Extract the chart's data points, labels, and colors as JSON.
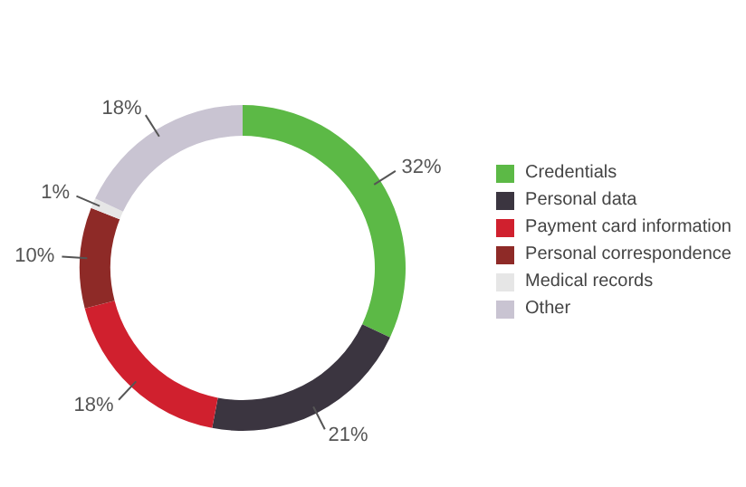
{
  "chart_data": {
    "type": "donut",
    "categories": [
      "Credentials",
      "Personal data",
      "Payment card information",
      "Personal correspondence",
      "Medical records",
      "Other"
    ],
    "values": [
      32,
      21,
      18,
      10,
      1,
      18
    ],
    "value_labels": [
      "32%",
      "21%",
      "18%",
      "10%",
      "1%",
      "18%"
    ],
    "colors": [
      "#5cb946",
      "#3b3540",
      "#d0202e",
      "#8e2a27",
      "#e6e6e6",
      "#c9c4d2"
    ],
    "legend": "right"
  }
}
